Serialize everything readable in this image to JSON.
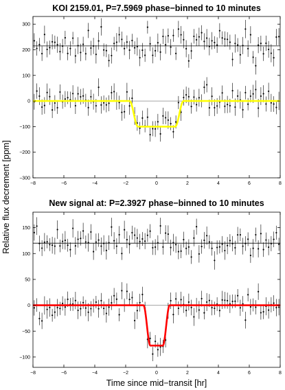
{
  "figure": {
    "ylabel": "Relative flux decrement [ppm]",
    "xlabel": "Time since mid−transit [hr]"
  },
  "chart_data": [
    {
      "type": "scatter",
      "title": "KOI 2159.01, P=7.5969 phase−binned to 10 minutes",
      "xlim": [
        -8,
        8
      ],
      "ylim": [
        -300,
        330
      ],
      "xticks": [
        "−8",
        "−6",
        "−4",
        "−2",
        "0",
        "2",
        "4",
        "6",
        "8"
      ],
      "yticks": [
        "−300",
        "−200",
        "−100",
        "0",
        "100",
        "200",
        "300"
      ],
      "ytick_values": [
        -300,
        -200,
        -100,
        0,
        100,
        200,
        300
      ],
      "grid": false,
      "model_color": "#ffff00",
      "transit": {
        "depth": 100,
        "half_width": 1.75,
        "ingress": 0.55
      },
      "offset_series_level": 215,
      "bin_width_min": 10,
      "errorbar_ppm": 30,
      "scatter_ppm": 28
    },
    {
      "type": "scatter",
      "title": "New signal at: P=2.3927 phase−binned to 10 minutes",
      "xlim": [
        -8,
        8
      ],
      "ylim": [
        -120,
        180
      ],
      "xticks": [
        "−8",
        "−6",
        "−4",
        "−2",
        "0",
        "2",
        "4",
        "6",
        "8"
      ],
      "yticks": [
        "−100",
        "−50",
        "0",
        "50",
        "100",
        "150"
      ],
      "ytick_values": [
        -100,
        -50,
        0,
        50,
        100,
        150
      ],
      "grid": false,
      "model_color": "#ff0000",
      "transit": {
        "depth": 78,
        "half_width": 0.85,
        "ingress": 0.45
      },
      "offset_series_level": 120,
      "bin_width_min": 10,
      "errorbar_ppm": 15,
      "scatter_ppm": 13
    }
  ]
}
